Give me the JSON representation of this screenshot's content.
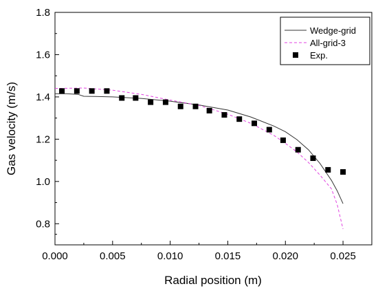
{
  "chart_data": {
    "type": "line",
    "title": "",
    "xlabel": "Radial position (m)",
    "ylabel": "Gas velocity (m/s)",
    "xlim": [
      0.0,
      0.0275
    ],
    "ylim": [
      0.7,
      1.8
    ],
    "x_ticks": [
      0.0,
      0.005,
      0.01,
      0.015,
      0.02,
      0.025
    ],
    "x_tick_labels": [
      "0.000",
      "0.005",
      "0.010",
      "0.015",
      "0.020",
      "0.025"
    ],
    "y_ticks": [
      0.8,
      1.0,
      1.2,
      1.4,
      1.6,
      1.8
    ],
    "y_tick_labels": [
      "0.8",
      "1.0",
      "1.2",
      "1.4",
      "1.6",
      "1.8"
    ],
    "grid": false,
    "legend_position": "top-right",
    "series": [
      {
        "name": "Wedge-grid",
        "style": "solid-line",
        "color": "#333333",
        "x": [
          0.0,
          0.001,
          0.002,
          0.0025,
          0.0035,
          0.005,
          0.0075,
          0.01,
          0.0125,
          0.015,
          0.017,
          0.019,
          0.02,
          0.021,
          0.022,
          0.023,
          0.024,
          0.0245,
          0.025
        ],
        "y": [
          1.415,
          1.415,
          1.412,
          1.403,
          1.402,
          1.4,
          1.393,
          1.38,
          1.362,
          1.338,
          1.305,
          1.262,
          1.235,
          1.198,
          1.15,
          1.085,
          1.005,
          0.955,
          0.895
        ]
      },
      {
        "name": "All-grid-3",
        "style": "dashed-line",
        "color": "#e040e0",
        "x": [
          0.0,
          0.0025,
          0.005,
          0.0075,
          0.01,
          0.0125,
          0.015,
          0.017,
          0.019,
          0.02,
          0.021,
          0.022,
          0.023,
          0.024,
          0.0245,
          0.025
        ],
        "y": [
          1.44,
          1.442,
          1.432,
          1.412,
          1.385,
          1.36,
          1.318,
          1.275,
          1.218,
          1.18,
          1.14,
          1.09,
          1.03,
          0.965,
          0.89,
          0.775
        ]
      },
      {
        "name": "Exp.",
        "style": "square-markers",
        "color": "#000000",
        "x": [
          0.0006,
          0.0019,
          0.0032,
          0.0045,
          0.0058,
          0.007,
          0.0083,
          0.0096,
          0.0109,
          0.0122,
          0.0134,
          0.0147,
          0.016,
          0.0173,
          0.0186,
          0.0198,
          0.0211,
          0.0224,
          0.0237,
          0.025
        ],
        "y": [
          1.428,
          1.428,
          1.428,
          1.428,
          1.395,
          1.395,
          1.375,
          1.375,
          1.355,
          1.355,
          1.335,
          1.315,
          1.295,
          1.275,
          1.245,
          1.195,
          1.15,
          1.11,
          1.055,
          1.045
        ]
      }
    ]
  }
}
